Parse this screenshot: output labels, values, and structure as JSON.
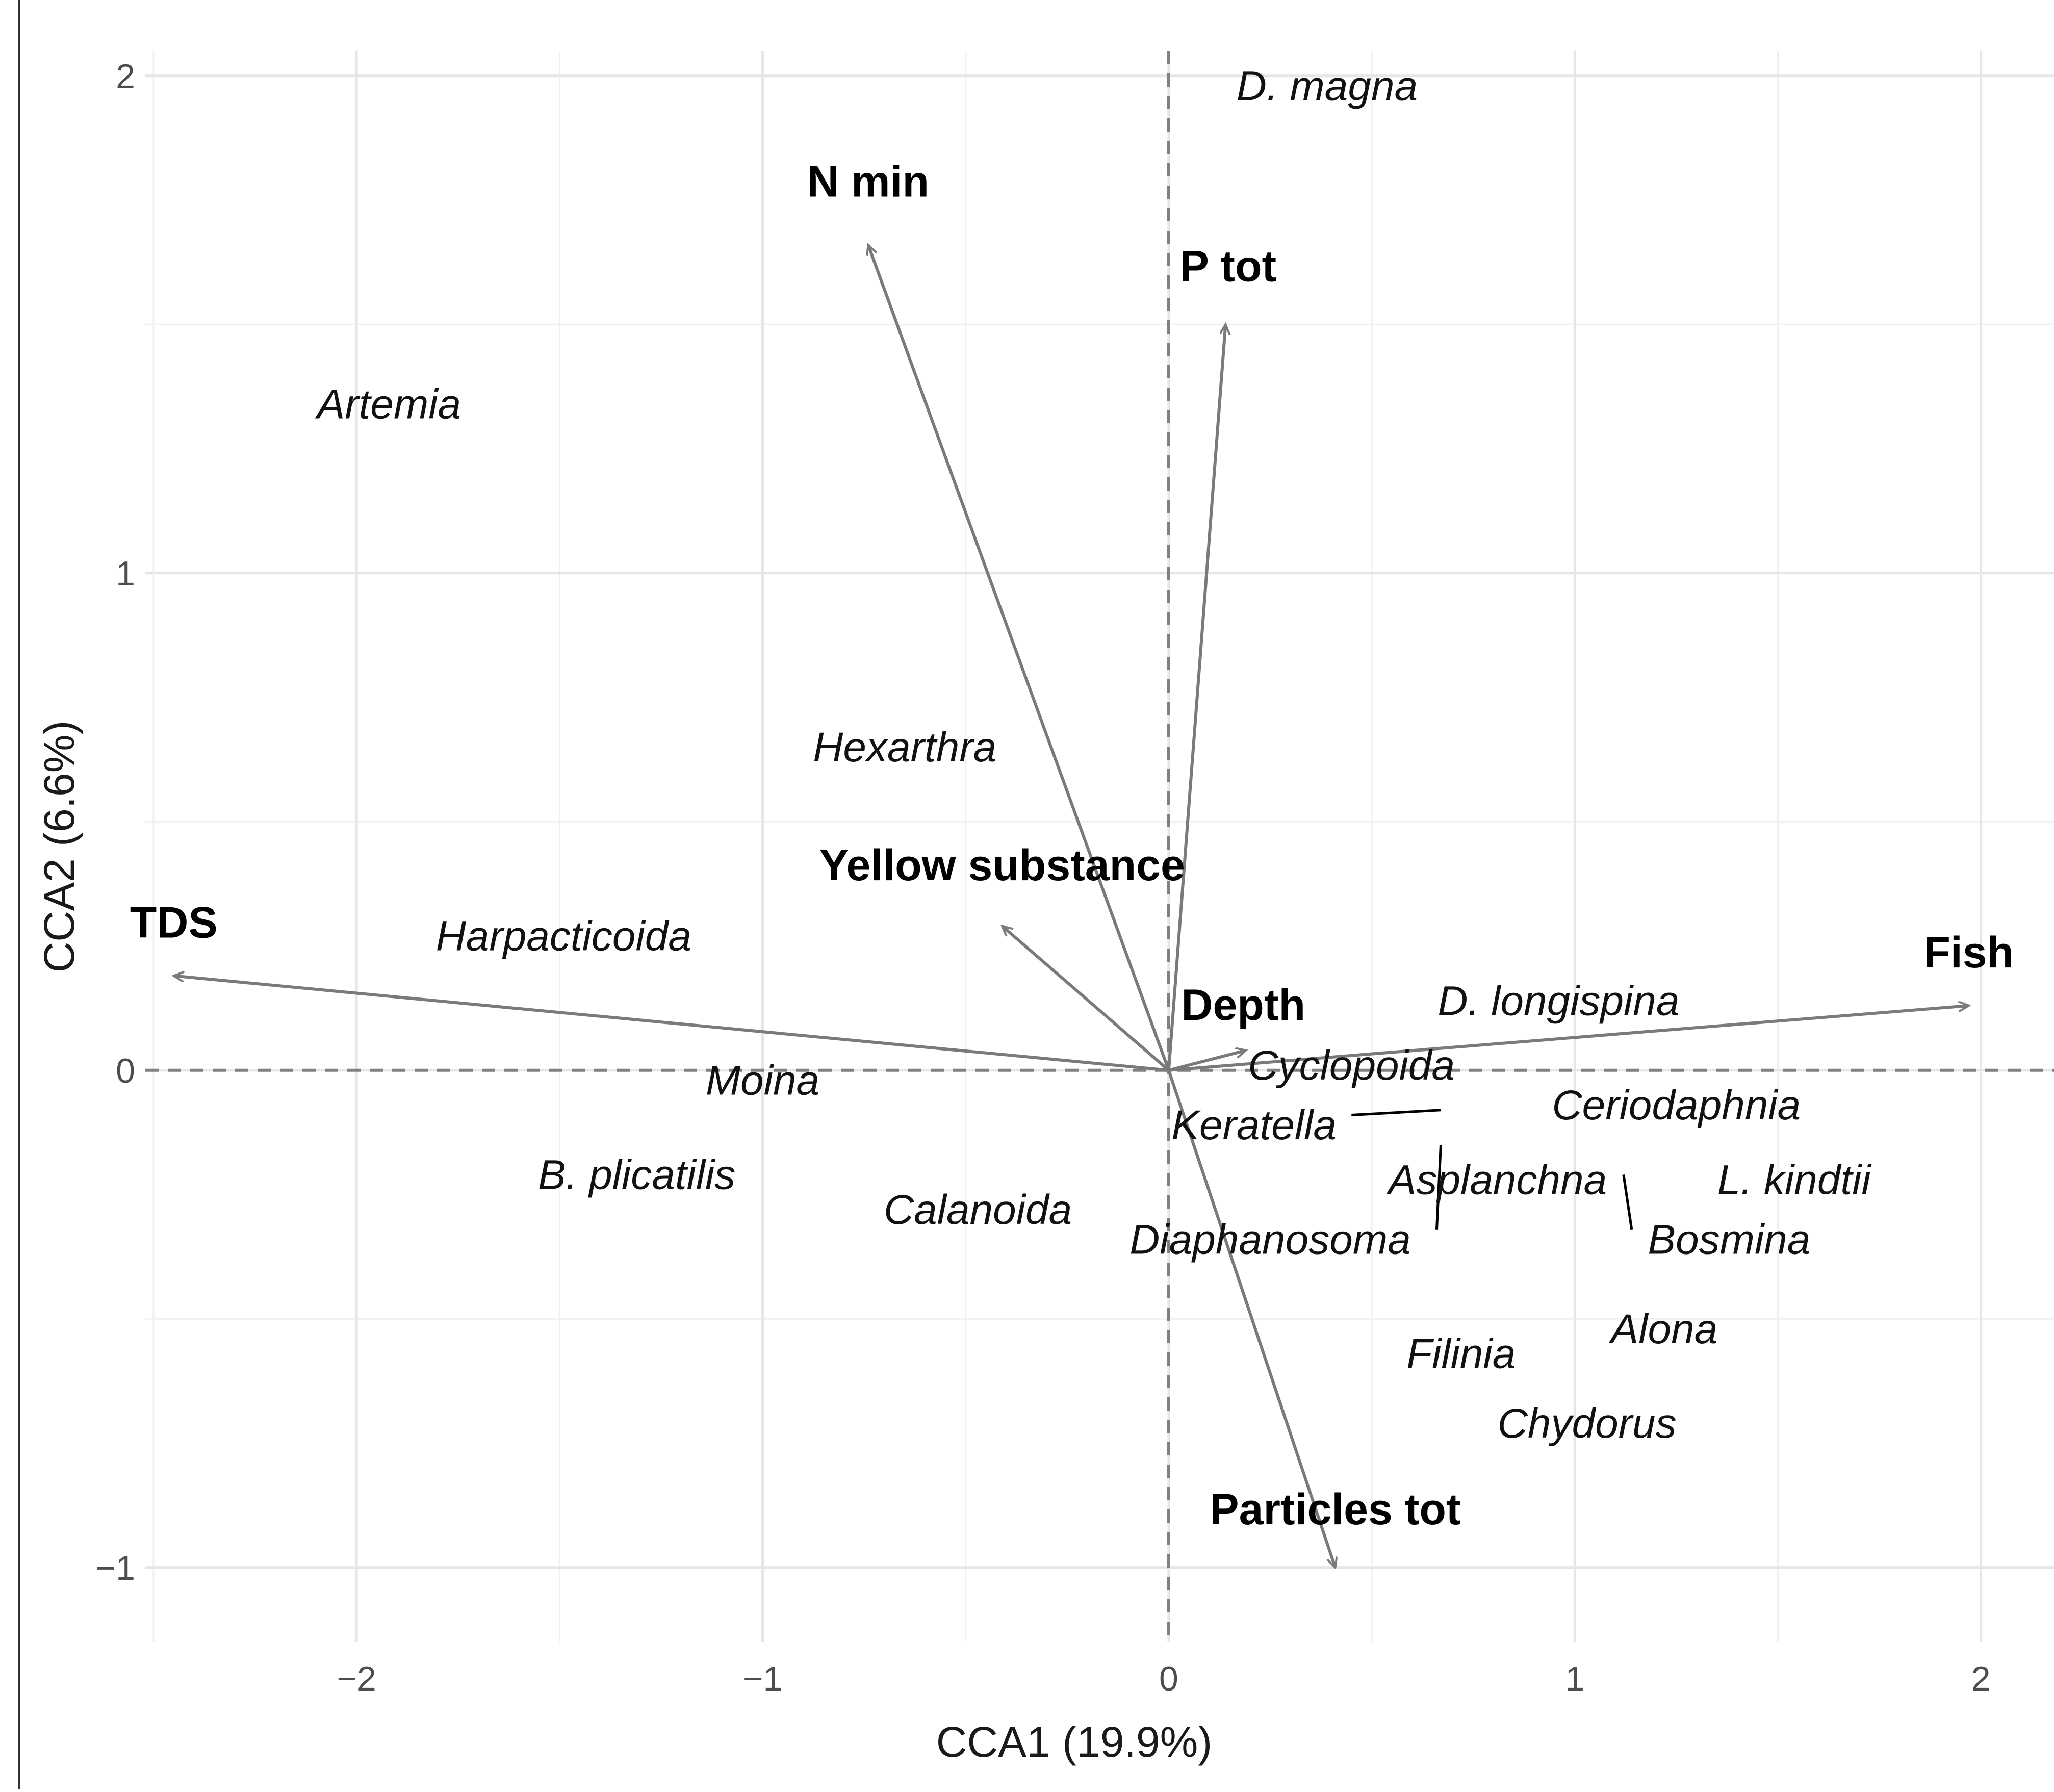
{
  "chart_data": {
    "type": "scatter",
    "title": "",
    "xlabel": "CCA1 (19.9%)",
    "ylabel": "CCA2 (6.6%)",
    "xlim": [
      -2.52,
      2.18
    ],
    "ylim": [
      -1.15,
      2.05
    ],
    "x_ticks": [
      -2,
      -1,
      0,
      1,
      2
    ],
    "y_ticks": [
      -1,
      0,
      1,
      2
    ],
    "x_tick_labels": [
      "−2",
      "−1",
      "0",
      "1",
      "2"
    ],
    "y_tick_labels": [
      "−1",
      "0",
      "1",
      "2"
    ],
    "grid": true,
    "reference_lines": {
      "x": 0,
      "y": 0,
      "style": "dashed"
    },
    "species": [
      {
        "name": "D. magna",
        "x": 0.39,
        "y": 1.98
      },
      {
        "name": "Artemia",
        "x": -1.92,
        "y": 1.34
      },
      {
        "name": "Hexarthra",
        "x": -0.65,
        "y": 0.65
      },
      {
        "name": "Harpacticoida",
        "x": -1.49,
        "y": 0.27
      },
      {
        "name": "Moina",
        "x": -1.0,
        "y": -0.02
      },
      {
        "name": "B. plicatilis",
        "x": -1.31,
        "y": -0.21
      },
      {
        "name": "Calanoida",
        "x": -0.47,
        "y": -0.28
      },
      {
        "name": "D. longispina",
        "x": 0.96,
        "y": 0.14
      },
      {
        "name": "Cyclopoida",
        "x": 0.45,
        "y": 0.01
      },
      {
        "name": "Keratella",
        "x": 0.21,
        "y": -0.11
      },
      {
        "name": "Ceriodaphnia",
        "x": 1.25,
        "y": -0.07
      },
      {
        "name": "Asplanchna",
        "x": 0.81,
        "y": -0.22
      },
      {
        "name": "L. kindtii",
        "x": 1.54,
        "y": -0.22
      },
      {
        "name": "Diaphanosoma",
        "x": 0.25,
        "y": -0.34
      },
      {
        "name": "Bosmina",
        "x": 1.38,
        "y": -0.34
      },
      {
        "name": "Alona",
        "x": 1.22,
        "y": -0.52
      },
      {
        "name": "Filinia",
        "x": 0.72,
        "y": -0.57
      },
      {
        "name": "Chydorus",
        "x": 1.03,
        "y": -0.71
      }
    ],
    "environmental_vectors": [
      {
        "name": "N min",
        "x": -0.74,
        "y": 1.66
      },
      {
        "name": "P tot",
        "x": 0.14,
        "y": 1.5
      },
      {
        "name": "Yellow substance",
        "x": -0.41,
        "y": 0.29
      },
      {
        "name": "TDS",
        "x": -2.45,
        "y": 0.19
      },
      {
        "name": "Fish",
        "x": 1.97,
        "y": 0.13
      },
      {
        "name": "Depth",
        "x": 0.19,
        "y": 0.04
      },
      {
        "name": "Particles tot",
        "x": 0.41,
        "y": -1.0
      }
    ]
  }
}
